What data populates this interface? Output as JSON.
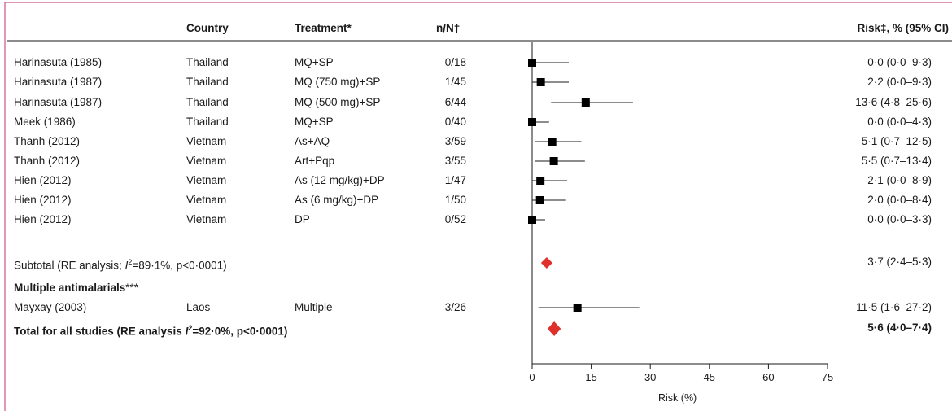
{
  "header": {
    "study": "",
    "country": "Country",
    "treatment": "Treatment*",
    "nn": "n/N†",
    "risk": "Risk‡, % (95% CI)"
  },
  "rows": [
    {
      "study": "Harinasuta (1985)",
      "country": "Thailand",
      "treatment": "MQ+SP",
      "nn": "0/18",
      "risk_text": "0·0 (0·0–9·3)"
    },
    {
      "study": "Harinasuta (1987)",
      "country": "Thailand",
      "treatment": "MQ (750 mg)+SP",
      "nn": "1/45",
      "risk_text": "2·2 (0·0–9·3)"
    },
    {
      "study": "Harinasuta (1987)",
      "country": "Thailand",
      "treatment": "MQ (500 mg)+SP",
      "nn": "6/44",
      "risk_text": "13·6 (4·8–25·6)"
    },
    {
      "study": "Meek (1986)",
      "country": "Thailand",
      "treatment": "MQ+SP",
      "nn": "0/40",
      "risk_text": "0·0 (0·0–4·3)"
    },
    {
      "study": "Thanh (2012)",
      "country": "Vietnam",
      "treatment": "As+AQ",
      "nn": "3/59",
      "risk_text": "5·1 (0·7–12·5)"
    },
    {
      "study": "Thanh (2012)",
      "country": "Vietnam",
      "treatment": "Art+Pqp",
      "nn": "3/55",
      "risk_text": "5·5 (0·7–13·4)"
    },
    {
      "study": "Hien (2012)",
      "country": "Vietnam",
      "treatment": "As (12 mg/kg)+DP",
      "nn": "1/47",
      "risk_text": "2·1 (0·0–8·9)"
    },
    {
      "study": "Hien (2012)",
      "country": "Vietnam",
      "treatment": "As (6 mg/kg)+DP",
      "nn": "1/50",
      "risk_text": "2·0 (0·0–8·4)"
    },
    {
      "study": "Hien (2012)",
      "country": "Vietnam",
      "treatment": "DP",
      "nn": "0/52",
      "risk_text": "0·0 (0·0–3·3)"
    }
  ],
  "subtotal": {
    "label_prefix": "Subtotal (RE analysis; ",
    "label_stat": "I",
    "label_suffix": "=89·1%, p<0·0001)",
    "risk_text": "3·7 (2·4–5·3)"
  },
  "section_multi": {
    "label": "Multiple antimalarials",
    "stars": "***"
  },
  "multi_row": {
    "study": "Mayxay (2003)",
    "country": "Laos",
    "treatment": "Multiple",
    "nn": "3/26",
    "risk_text": "11·5 (1·6–27·2)"
  },
  "total": {
    "label_prefix": "Total for all studies (RE analysis ",
    "label_stat": "I",
    "label_suffix": "=92·0%, p<0·0001)",
    "risk_text": "5·6 (4·0–7·4)"
  },
  "chart_data": {
    "type": "forest",
    "xlabel": "Risk (%)",
    "xlim": [
      0,
      75
    ],
    "xticks": [
      0,
      15,
      30,
      45,
      60,
      75
    ],
    "studies": [
      {
        "est": 0.0,
        "lo": 0.0,
        "hi": 9.3
      },
      {
        "est": 2.2,
        "lo": 0.0,
        "hi": 9.3
      },
      {
        "est": 13.6,
        "lo": 4.8,
        "hi": 25.6
      },
      {
        "est": 0.0,
        "lo": 0.0,
        "hi": 4.3
      },
      {
        "est": 5.1,
        "lo": 0.7,
        "hi": 12.5
      },
      {
        "est": 5.5,
        "lo": 0.7,
        "hi": 13.4
      },
      {
        "est": 2.1,
        "lo": 0.0,
        "hi": 8.9
      },
      {
        "est": 2.0,
        "lo": 0.0,
        "hi": 8.4
      },
      {
        "est": 0.0,
        "lo": 0.0,
        "hi": 3.3
      }
    ],
    "subtotal": {
      "est": 3.7,
      "lo": 2.4,
      "hi": 5.3
    },
    "multi_study": {
      "est": 11.5,
      "lo": 1.6,
      "hi": 27.2
    },
    "total": {
      "est": 5.6,
      "lo": 4.0,
      "hi": 7.4
    },
    "colors": {
      "marker": "#000000",
      "diamond": "#e0302b",
      "frame": "#c0306e"
    }
  }
}
